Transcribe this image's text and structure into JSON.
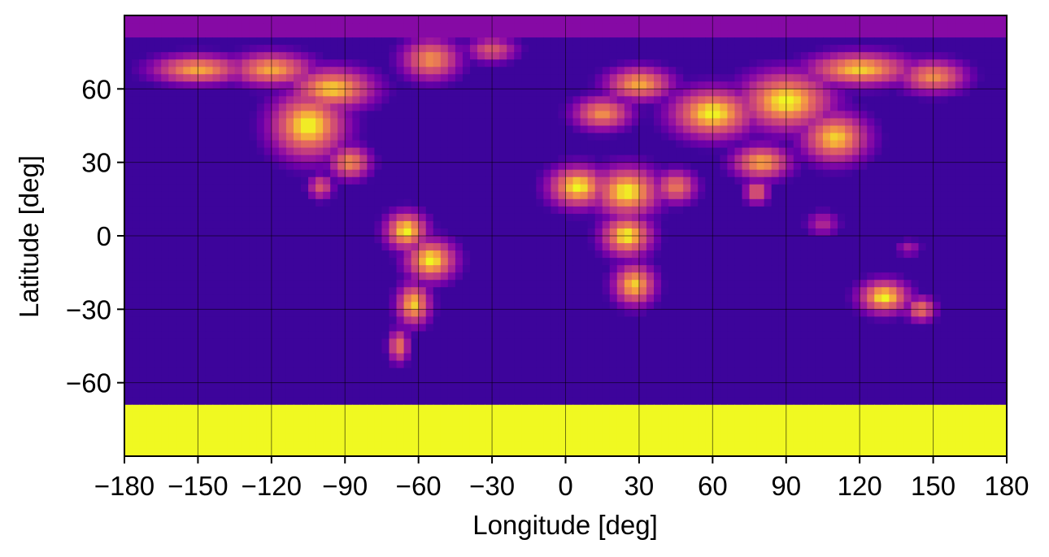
{
  "chart_data": {
    "type": "heatmap",
    "title": "",
    "xlabel": "Longitude [deg]",
    "ylabel": "Latitude [deg]",
    "xlim": [
      -180,
      180
    ],
    "ylim": [
      -90,
      90
    ],
    "xticks": [
      -180,
      -150,
      -120,
      -90,
      -60,
      -30,
      0,
      30,
      60,
      90,
      120,
      150,
      180
    ],
    "yticks": [
      -60,
      -30,
      0,
      30,
      60
    ],
    "xtick_labels": [
      "−180",
      "−150",
      "−120",
      "−90",
      "−60",
      "−30",
      "0",
      "30",
      "60",
      "90",
      "120",
      "150",
      "180"
    ],
    "ytick_labels": [
      "−60",
      "−30",
      "0",
      "30",
      "60"
    ],
    "grid": true,
    "colormap": "plasma",
    "value_range": [
      0,
      1
    ],
    "description_of_field": "smoothed land mask: ~1 over land and polar ice, ~0 over ocean",
    "land_blobs": [
      {
        "lon": -105,
        "lat": 45,
        "rlon": 18,
        "rlat": 16,
        "v": 1.0
      },
      {
        "lon": -95,
        "lat": 60,
        "rlon": 20,
        "rlat": 10,
        "v": 0.95
      },
      {
        "lon": -150,
        "lat": 68,
        "rlon": 22,
        "rlat": 7,
        "v": 0.9
      },
      {
        "lon": -120,
        "lat": 68,
        "rlon": 20,
        "rlat": 8,
        "v": 0.9
      },
      {
        "lon": -88,
        "lat": 30,
        "rlon": 10,
        "rlat": 8,
        "v": 0.85
      },
      {
        "lon": -100,
        "lat": 20,
        "rlon": 6,
        "rlat": 6,
        "v": 0.7
      },
      {
        "lon": -55,
        "lat": 72,
        "rlon": 14,
        "rlat": 10,
        "v": 0.85
      },
      {
        "lon": -30,
        "lat": 76,
        "rlon": 12,
        "rlat": 6,
        "v": 0.7
      },
      {
        "lon": -65,
        "lat": 2,
        "rlon": 10,
        "rlat": 9,
        "v": 1.0
      },
      {
        "lon": -55,
        "lat": -10,
        "rlon": 12,
        "rlat": 10,
        "v": 1.0
      },
      {
        "lon": -62,
        "lat": -28,
        "rlon": 8,
        "rlat": 10,
        "v": 0.95
      },
      {
        "lon": -68,
        "lat": -45,
        "rlon": 5,
        "rlat": 8,
        "v": 0.8
      },
      {
        "lon": 5,
        "lat": 20,
        "rlon": 14,
        "rlat": 10,
        "v": 1.0
      },
      {
        "lon": 25,
        "lat": 18,
        "rlon": 16,
        "rlat": 12,
        "v": 1.0
      },
      {
        "lon": 25,
        "lat": 0,
        "rlon": 12,
        "rlat": 10,
        "v": 1.0
      },
      {
        "lon": 28,
        "lat": -20,
        "rlon": 10,
        "rlat": 10,
        "v": 0.95
      },
      {
        "lon": 45,
        "lat": 20,
        "rlon": 10,
        "rlat": 8,
        "v": 0.8
      },
      {
        "lon": 15,
        "lat": 50,
        "rlon": 14,
        "rlat": 8,
        "v": 0.85
      },
      {
        "lon": 30,
        "lat": 62,
        "rlon": 16,
        "rlat": 8,
        "v": 0.9
      },
      {
        "lon": 60,
        "lat": 50,
        "rlon": 20,
        "rlat": 12,
        "v": 1.0
      },
      {
        "lon": 90,
        "lat": 55,
        "rlon": 22,
        "rlat": 14,
        "v": 1.0
      },
      {
        "lon": 110,
        "lat": 40,
        "rlon": 16,
        "rlat": 12,
        "v": 0.95
      },
      {
        "lon": 80,
        "lat": 30,
        "rlon": 14,
        "rlat": 8,
        "v": 0.9
      },
      {
        "lon": 78,
        "lat": 18,
        "rlon": 6,
        "rlat": 6,
        "v": 0.75
      },
      {
        "lon": 120,
        "lat": 68,
        "rlon": 25,
        "rlat": 8,
        "v": 0.95
      },
      {
        "lon": 150,
        "lat": 65,
        "rlon": 16,
        "rlat": 8,
        "v": 0.85
      },
      {
        "lon": 130,
        "lat": -25,
        "rlon": 12,
        "rlat": 8,
        "v": 1.0
      },
      {
        "lon": 145,
        "lat": -30,
        "rlon": 7,
        "rlat": 6,
        "v": 0.8
      },
      {
        "lon": 105,
        "lat": 5,
        "rlon": 8,
        "rlat": 6,
        "v": 0.5
      },
      {
        "lon": 140,
        "lat": -5,
        "rlon": 6,
        "rlat": 4,
        "v": 0.45
      }
    ],
    "polar_bands": [
      {
        "lat_from": -90,
        "lat_to": -68,
        "v": 1.0
      },
      {
        "lat_from": 80,
        "lat_to": 90,
        "v": 0.35
      }
    ]
  }
}
